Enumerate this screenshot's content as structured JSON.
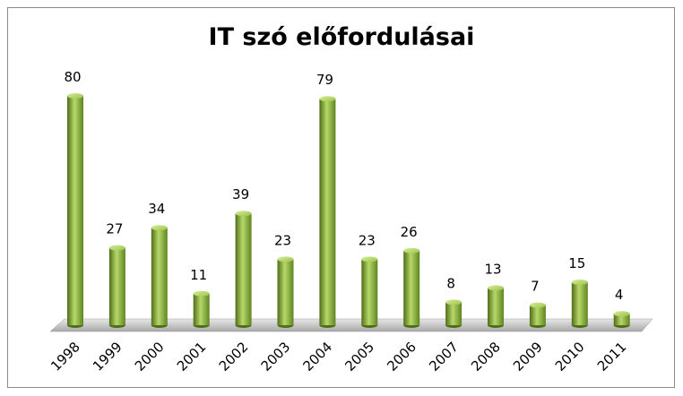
{
  "chart_data": {
    "type": "bar",
    "title": "IT szó előfordulásai",
    "categories": [
      "1998",
      "1999",
      "2000",
      "2001",
      "2002",
      "2003",
      "2004",
      "2005",
      "2006",
      "2007",
      "2008",
      "2009",
      "2010",
      "2011"
    ],
    "values": [
      80,
      27,
      34,
      11,
      39,
      23,
      79,
      23,
      26,
      8,
      13,
      7,
      15,
      4
    ],
    "color": "#8db33a"
  }
}
